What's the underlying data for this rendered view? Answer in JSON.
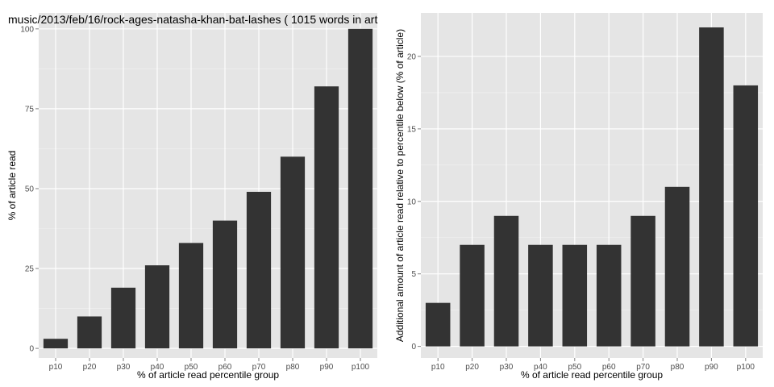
{
  "chart_data": [
    {
      "type": "bar",
      "title": "music/2013/feb/16/rock-ages-natasha-khan-bat-lashes ( 1015 words in art",
      "xlabel": "% of article read percentile group",
      "ylabel": "% of article read",
      "categories": [
        "p10",
        "p20",
        "p30",
        "p40",
        "p50",
        "p60",
        "p70",
        "p80",
        "p90",
        "p100"
      ],
      "values": [
        3,
        10,
        19,
        26,
        33,
        40,
        49,
        60,
        82,
        100
      ],
      "ylim": [
        -3,
        105
      ],
      "yticks": [
        0,
        25,
        50,
        75,
        100
      ],
      "grid": true,
      "bar_color": "#333333",
      "panel_color": "#e5e5e5"
    },
    {
      "type": "bar",
      "title": "",
      "xlabel": "% of article read percentile group",
      "ylabel": "Additional amount of article read relative to percentile below (% of article)",
      "categories": [
        "p10",
        "p20",
        "p30",
        "p40",
        "p50",
        "p60",
        "p70",
        "p80",
        "p90",
        "p100"
      ],
      "values": [
        3,
        7,
        9,
        7,
        7,
        7,
        9,
        11,
        22,
        18
      ],
      "ylim": [
        -0.8,
        23
      ],
      "yticks": [
        0,
        5,
        10,
        15,
        20
      ],
      "grid": true,
      "bar_color": "#333333",
      "panel_color": "#e5e5e5"
    }
  ]
}
